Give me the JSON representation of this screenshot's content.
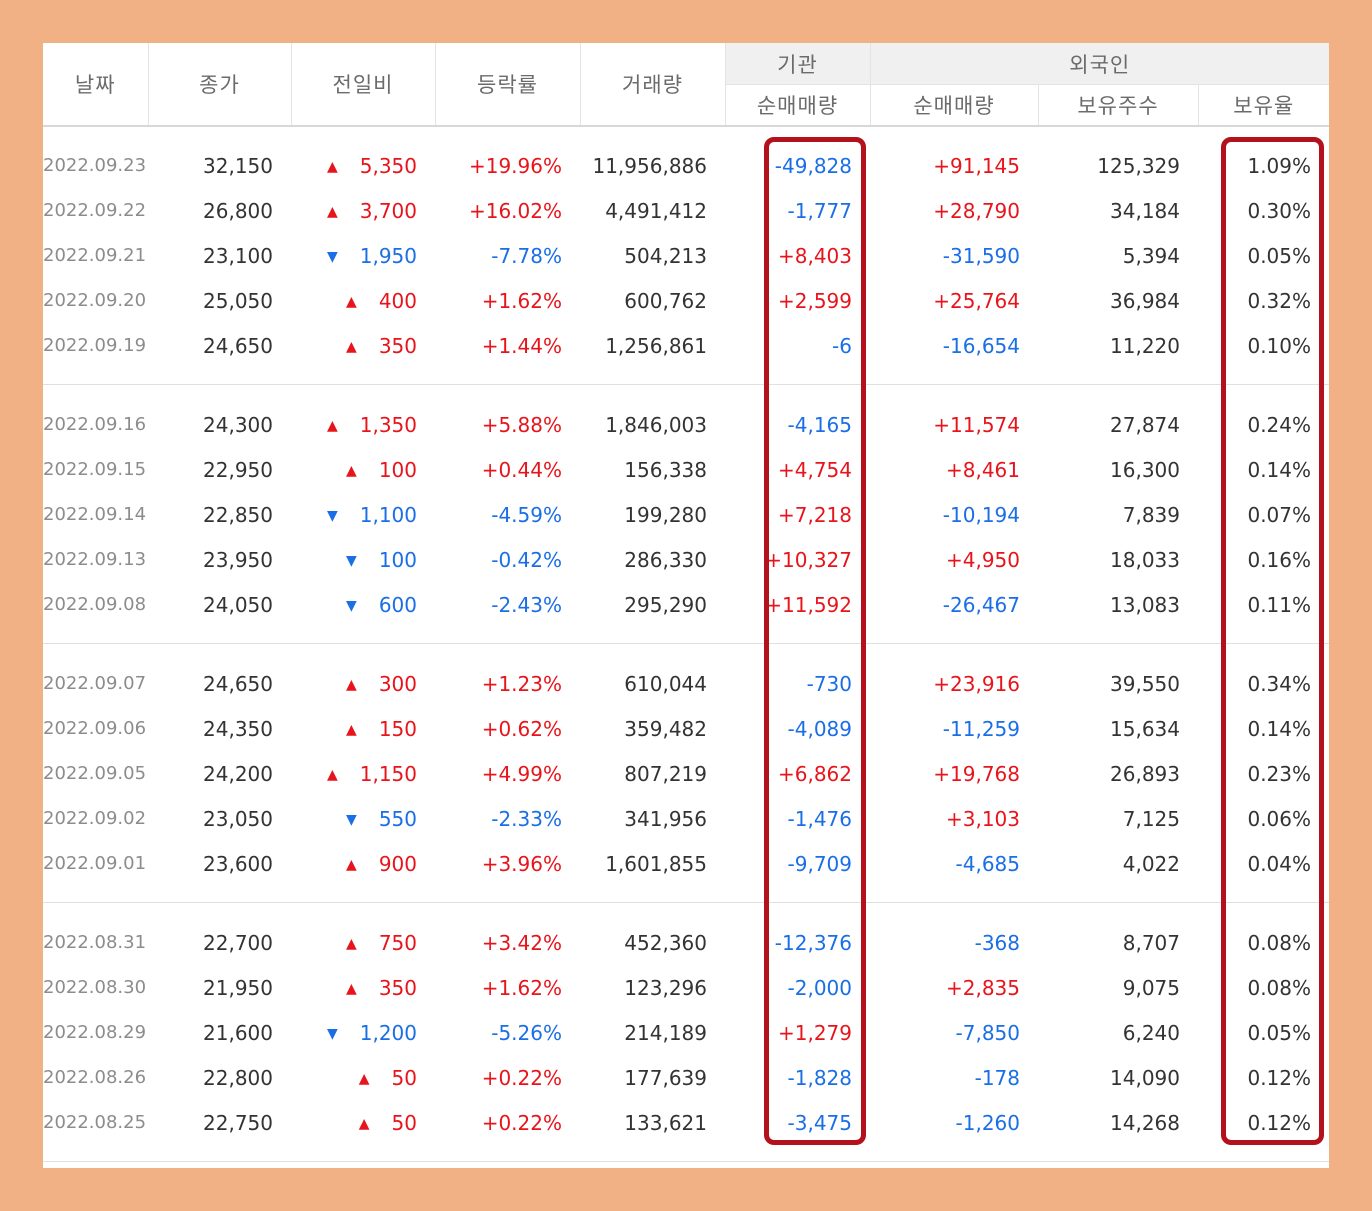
{
  "headers": {
    "date": "날짜",
    "close": "종가",
    "change": "전일비",
    "rate": "등락률",
    "volume": "거래량",
    "institution_group": "기관",
    "inst_net": "순매매량",
    "foreign_group": "외국인",
    "foreign_net": "순매매량",
    "foreign_hold": "보유주수",
    "foreign_ratio": "보유율"
  },
  "rows": [
    {
      "date": "2022.09.23",
      "close": "32,150",
      "dir": "up",
      "change": "5,350",
      "rate": "+19.96%",
      "volume": "11,956,886",
      "inst": "-49,828",
      "foreign": "+91,145",
      "hold": "125,329",
      "ratio": "1.09%"
    },
    {
      "date": "2022.09.22",
      "close": "26,800",
      "dir": "up",
      "change": "3,700",
      "rate": "+16.02%",
      "volume": "4,491,412",
      "inst": "-1,777",
      "foreign": "+28,790",
      "hold": "34,184",
      "ratio": "0.30%"
    },
    {
      "date": "2022.09.21",
      "close": "23,100",
      "dir": "down",
      "change": "1,950",
      "rate": "-7.78%",
      "volume": "504,213",
      "inst": "+8,403",
      "foreign": "-31,590",
      "hold": "5,394",
      "ratio": "0.05%"
    },
    {
      "date": "2022.09.20",
      "close": "25,050",
      "dir": "up",
      "change": "400",
      "rate": "+1.62%",
      "volume": "600,762",
      "inst": "+2,599",
      "foreign": "+25,764",
      "hold": "36,984",
      "ratio": "0.32%"
    },
    {
      "date": "2022.09.19",
      "close": "24,650",
      "dir": "up",
      "change": "350",
      "rate": "+1.44%",
      "volume": "1,256,861",
      "inst": "-6",
      "foreign": "-16,654",
      "hold": "11,220",
      "ratio": "0.10%"
    },
    {
      "date": "2022.09.16",
      "close": "24,300",
      "dir": "up",
      "change": "1,350",
      "rate": "+5.88%",
      "volume": "1,846,003",
      "inst": "-4,165",
      "foreign": "+11,574",
      "hold": "27,874",
      "ratio": "0.24%"
    },
    {
      "date": "2022.09.15",
      "close": "22,950",
      "dir": "up",
      "change": "100",
      "rate": "+0.44%",
      "volume": "156,338",
      "inst": "+4,754",
      "foreign": "+8,461",
      "hold": "16,300",
      "ratio": "0.14%"
    },
    {
      "date": "2022.09.14",
      "close": "22,850",
      "dir": "down",
      "change": "1,100",
      "rate": "-4.59%",
      "volume": "199,280",
      "inst": "+7,218",
      "foreign": "-10,194",
      "hold": "7,839",
      "ratio": "0.07%"
    },
    {
      "date": "2022.09.13",
      "close": "23,950",
      "dir": "down",
      "change": "100",
      "rate": "-0.42%",
      "volume": "286,330",
      "inst": "+10,327",
      "foreign": "+4,950",
      "hold": "18,033",
      "ratio": "0.16%"
    },
    {
      "date": "2022.09.08",
      "close": "24,050",
      "dir": "down",
      "change": "600",
      "rate": "-2.43%",
      "volume": "295,290",
      "inst": "+11,592",
      "foreign": "-26,467",
      "hold": "13,083",
      "ratio": "0.11%"
    },
    {
      "date": "2022.09.07",
      "close": "24,650",
      "dir": "up",
      "change": "300",
      "rate": "+1.23%",
      "volume": "610,044",
      "inst": "-730",
      "foreign": "+23,916",
      "hold": "39,550",
      "ratio": "0.34%"
    },
    {
      "date": "2022.09.06",
      "close": "24,350",
      "dir": "up",
      "change": "150",
      "rate": "+0.62%",
      "volume": "359,482",
      "inst": "-4,089",
      "foreign": "-11,259",
      "hold": "15,634",
      "ratio": "0.14%"
    },
    {
      "date": "2022.09.05",
      "close": "24,200",
      "dir": "up",
      "change": "1,150",
      "rate": "+4.99%",
      "volume": "807,219",
      "inst": "+6,862",
      "foreign": "+19,768",
      "hold": "26,893",
      "ratio": "0.23%"
    },
    {
      "date": "2022.09.02",
      "close": "23,050",
      "dir": "down",
      "change": "550",
      "rate": "-2.33%",
      "volume": "341,956",
      "inst": "-1,476",
      "foreign": "+3,103",
      "hold": "7,125",
      "ratio": "0.06%"
    },
    {
      "date": "2022.09.01",
      "close": "23,600",
      "dir": "up",
      "change": "900",
      "rate": "+3.96%",
      "volume": "1,601,855",
      "inst": "-9,709",
      "foreign": "-4,685",
      "hold": "4,022",
      "ratio": "0.04%"
    },
    {
      "date": "2022.08.31",
      "close": "22,700",
      "dir": "up",
      "change": "750",
      "rate": "+3.42%",
      "volume": "452,360",
      "inst": "-12,376",
      "foreign": "-368",
      "hold": "8,707",
      "ratio": "0.08%"
    },
    {
      "date": "2022.08.30",
      "close": "21,950",
      "dir": "up",
      "change": "350",
      "rate": "+1.62%",
      "volume": "123,296",
      "inst": "-2,000",
      "foreign": "+2,835",
      "hold": "9,075",
      "ratio": "0.08%"
    },
    {
      "date": "2022.08.29",
      "close": "21,600",
      "dir": "down",
      "change": "1,200",
      "rate": "-5.26%",
      "volume": "214,189",
      "inst": "+1,279",
      "foreign": "-7,850",
      "hold": "6,240",
      "ratio": "0.05%"
    },
    {
      "date": "2022.08.26",
      "close": "22,800",
      "dir": "up",
      "change": "50",
      "rate": "+0.22%",
      "volume": "177,639",
      "inst": "-1,828",
      "foreign": "-178",
      "hold": "14,090",
      "ratio": "0.12%"
    },
    {
      "date": "2022.08.25",
      "close": "22,750",
      "dir": "up",
      "change": "50",
      "rate": "+0.22%",
      "volume": "133,621",
      "inst": "-3,475",
      "foreign": "-1,260",
      "hold": "14,268",
      "ratio": "0.12%"
    }
  ],
  "colors": {
    "up": "#e8141b",
    "down": "#1a6ee6",
    "highlight": "#b3121d",
    "frame": "#f2b184"
  },
  "icons": {
    "up": "▲",
    "down": "▼"
  }
}
